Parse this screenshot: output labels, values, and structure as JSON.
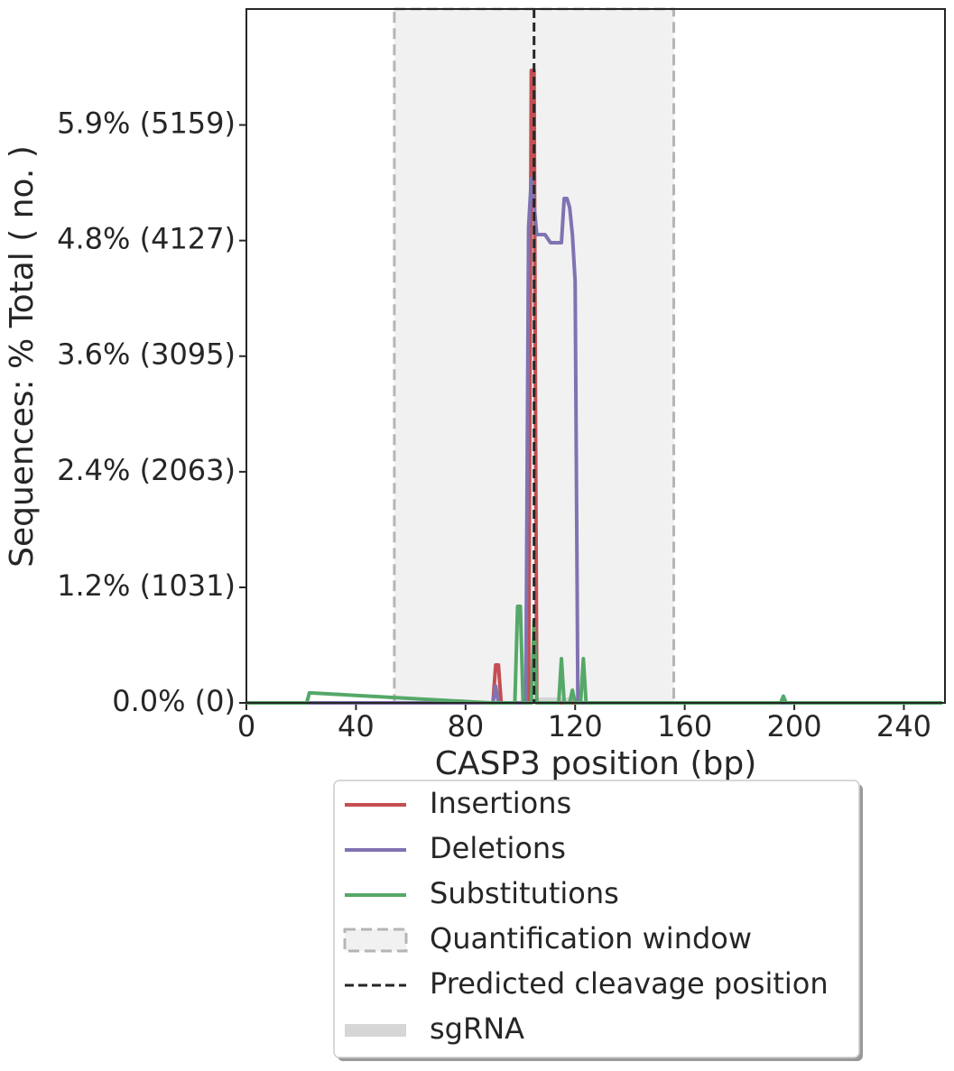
{
  "chart_data": {
    "type": "line",
    "xlabel": "CASP3 position (bp)",
    "ylabel": "Sequences: % Total ( no. )",
    "x": [
      0,
      21,
      22,
      23,
      89,
      90,
      91,
      92,
      93,
      97,
      98,
      99,
      100,
      101,
      102,
      103,
      104,
      105,
      106,
      107,
      109,
      111,
      113,
      114,
      115,
      116,
      117,
      118,
      119,
      120,
      121,
      122,
      123,
      124,
      195,
      196,
      197,
      254
    ],
    "series": [
      {
        "name": "Insertions",
        "color": "#c44e52",
        "values": [
          0,
          0,
          0,
          0,
          0,
          0,
          338,
          338,
          0,
          0,
          0,
          0,
          0,
          0,
          0,
          0,
          5646,
          5646,
          0,
          0,
          0,
          0,
          0,
          0,
          0,
          0,
          0,
          0,
          0,
          0,
          0,
          0,
          0,
          0,
          0,
          0,
          0,
          0
        ]
      },
      {
        "name": "Deletions",
        "color": "#8172b2",
        "values": [
          0,
          0,
          0,
          0,
          0,
          0,
          150,
          0,
          0,
          0,
          0,
          0,
          0,
          0,
          0,
          4245,
          4680,
          4450,
          4180,
          4180,
          4180,
          4108,
          4108,
          4108,
          4108,
          4503,
          4503,
          4422,
          4180,
          3762,
          0,
          0,
          0,
          0,
          0,
          0,
          0,
          0
        ]
      },
      {
        "name": "Substitutions",
        "color": "#55a868",
        "values": [
          0,
          0,
          0,
          90,
          0,
          0,
          0,
          0,
          0,
          0,
          0,
          862,
          862,
          0,
          0,
          0,
          0,
          733,
          0,
          0,
          0,
          0,
          0,
          0,
          395,
          0,
          0,
          0,
          113,
          0,
          0,
          0,
          395,
          0,
          0,
          60,
          0,
          0
        ]
      }
    ],
    "quantification_window": {
      "name": "Quantification window",
      "range": [
        54,
        156
      ],
      "color": "#f1f1f1"
    },
    "cleavage": {
      "name": "Predicted cleavage position",
      "x": 105
    },
    "sgrna": {
      "name": "sgRNA",
      "range": [
        101,
        121
      ],
      "color": "#d6d6d6"
    },
    "xlim": [
      0,
      255
    ],
    "xticks": [
      0,
      40,
      80,
      120,
      160,
      200,
      240
    ],
    "ylim": [
      0,
      6194
    ],
    "yticks": [
      {
        "value": 0,
        "label": "0.0% (0)"
      },
      {
        "value": 1031,
        "label": "1.2% (1031)"
      },
      {
        "value": 2063,
        "label": "2.4% (2063)"
      },
      {
        "value": 3095,
        "label": "3.6% (3095)"
      },
      {
        "value": 4127,
        "label": "4.8% (4127)"
      },
      {
        "value": 5159,
        "label": "5.9% (5159)"
      }
    ],
    "legend": "below"
  }
}
